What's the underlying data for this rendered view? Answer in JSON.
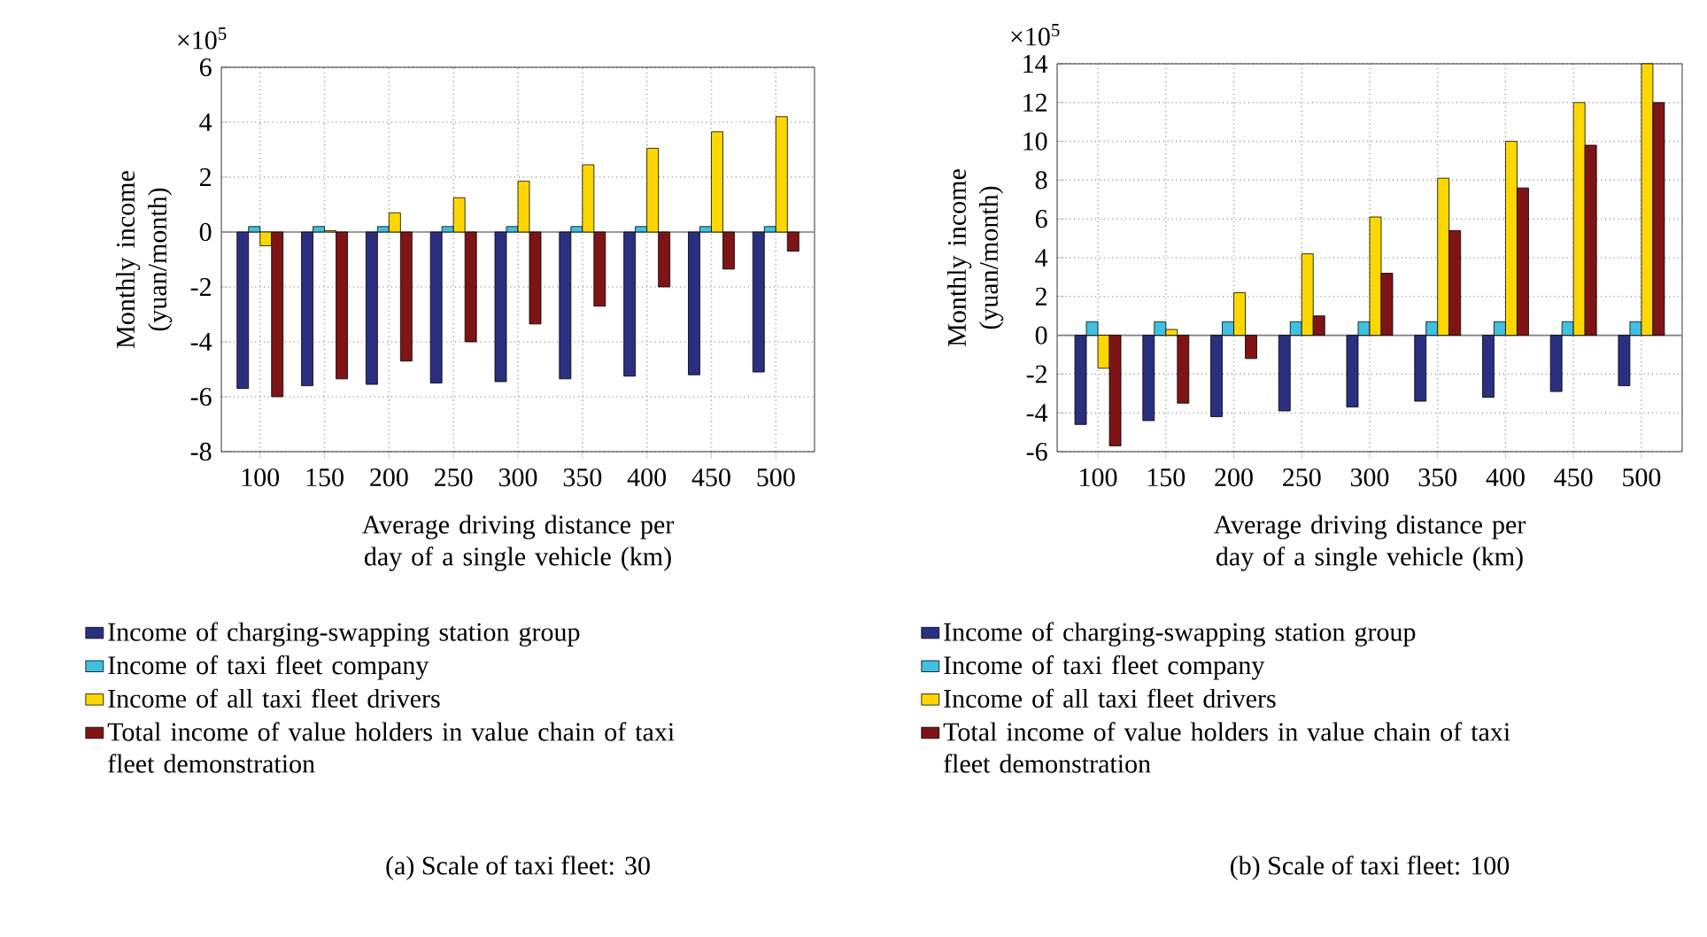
{
  "chart_data": [
    {
      "type": "bar",
      "categories": [
        "100",
        "150",
        "200",
        "250",
        "300",
        "350",
        "400",
        "450",
        "500"
      ],
      "xlabel": "Average driving distance per day of a single vehicle (km)",
      "ylabel": "Monthly income (yuan/month)",
      "ylim": [
        -8,
        6
      ],
      "yticks": [
        -8,
        -6,
        -4,
        -2,
        0,
        2,
        4,
        6
      ],
      "grid": true,
      "legend": "bottom",
      "annotations": [
        "×10$^{5}$",
        "(a)  Scale of taxi fleet: 30"
      ],
      "series": [
        {
          "name": "Income of charging-swapping station group",
          "color": "#2b2f7f",
          "values": [
            -5.7,
            -5.6,
            -5.55,
            -5.5,
            -5.45,
            -5.35,
            -5.25,
            -5.2,
            -5.1
          ]
        },
        {
          "name": "Income of taxi fleet company",
          "color": "#40c0e0",
          "values": [
            0.2,
            0.2,
            0.2,
            0.2,
            0.2,
            0.2,
            0.2,
            0.2,
            0.2
          ]
        },
        {
          "name": "Income of all taxi fleet drivers",
          "color": "#ffd700",
          "values": [
            -0.5,
            0.05,
            0.7,
            1.25,
            1.85,
            2.45,
            3.05,
            3.65,
            4.2
          ]
        },
        {
          "name": "Total income of value holders in value chain of taxi fleet demonstration",
          "color": "#7f1416",
          "values": [
            -6.0,
            -5.35,
            -4.7,
            -4.0,
            -3.35,
            -2.7,
            -2.0,
            -1.35,
            -0.7
          ]
        }
      ]
    },
    {
      "type": "bar",
      "categories": [
        "100",
        "150",
        "200",
        "250",
        "300",
        "350",
        "400",
        "450",
        "500"
      ],
      "xlabel": "Average driving distance per day of a single vehicle (km)",
      "ylabel": "Monthly income (yuan/month)",
      "ylim": [
        -6,
        14
      ],
      "yticks": [
        -6,
        -4,
        -2,
        0,
        2,
        4,
        6,
        8,
        10,
        12,
        14
      ],
      "grid": true,
      "legend": "bottom",
      "annotations": [
        "×10$^{5}$",
        "(b)  Scale of taxi fleet: 100"
      ],
      "series": [
        {
          "name": "Income of charging-swapping station group",
          "color": "#2b2f7f",
          "values": [
            -4.6,
            -4.4,
            -4.2,
            -3.9,
            -3.7,
            -3.4,
            -3.2,
            -2.9,
            -2.6
          ]
        },
        {
          "name": "Income of taxi fleet company",
          "color": "#40c0e0",
          "values": [
            0.7,
            0.7,
            0.7,
            0.7,
            0.7,
            0.7,
            0.7,
            0.7,
            0.7
          ]
        },
        {
          "name": "Income of all taxi fleet drivers",
          "color": "#ffd700",
          "values": [
            -1.7,
            0.3,
            2.2,
            4.2,
            6.1,
            8.1,
            10.0,
            12.0,
            14.0
          ]
        },
        {
          "name": "Total income of value holders in value chain of taxi fleet demonstration",
          "color": "#7f1416",
          "values": [
            -5.7,
            -3.5,
            -1.2,
            1.0,
            3.2,
            5.4,
            7.6,
            9.8,
            12.0
          ]
        }
      ]
    }
  ]
}
